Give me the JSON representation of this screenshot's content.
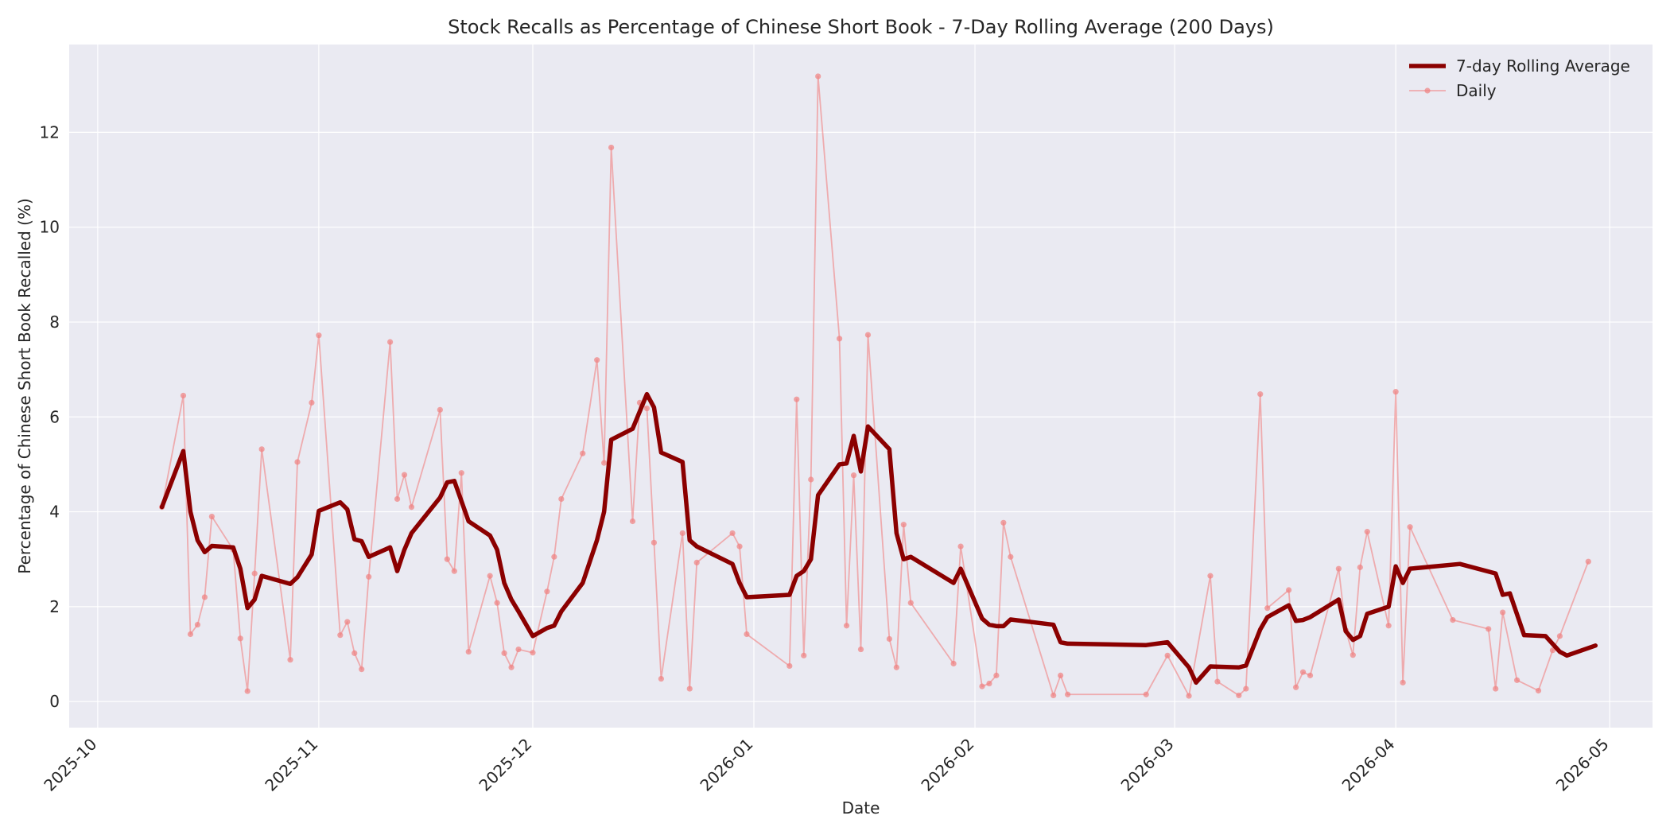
{
  "chart_data": {
    "type": "line",
    "title": "Stock Recalls as Percentage of Chinese Short Book - 7-Day Rolling Average (200 Days)",
    "xlabel": "Date",
    "ylabel": "Percentage of Chinese Short Book Recalled (%)",
    "x_axis_type": "date",
    "xlim": [
      "2025-09-27",
      "2026-05-07"
    ],
    "ylim": [
      -0.55,
      13.85
    ],
    "xticks": [
      "2025-10-01",
      "2025-11-01",
      "2025-12-01",
      "2026-01-01",
      "2026-02-01",
      "2026-03-01",
      "2026-04-01",
      "2026-05-01"
    ],
    "xtick_labels": [
      "2025-10",
      "2025-11",
      "2025-12",
      "2026-01",
      "2026-02",
      "2026-03",
      "2026-04",
      "2026-05"
    ],
    "yticks": [
      0,
      2,
      4,
      6,
      8,
      10,
      12
    ],
    "grid": true,
    "legend_position": "top-right",
    "colors": {
      "background": "#eaeaf2",
      "grid": "#ffffff",
      "rolling": "#8b0000",
      "daily": "#f08080"
    },
    "series": [
      {
        "name": "7-day Rolling Average",
        "style": "thick-line",
        "points": [
          [
            "2025-10-10",
            4.1
          ],
          [
            "2025-10-13",
            5.28
          ],
          [
            "2025-10-14",
            4.0
          ],
          [
            "2025-10-15",
            3.4
          ],
          [
            "2025-10-16",
            3.15
          ],
          [
            "2025-10-17",
            3.28
          ],
          [
            "2025-10-20",
            3.25
          ],
          [
            "2025-10-21",
            2.8
          ],
          [
            "2025-10-22",
            1.97
          ],
          [
            "2025-10-23",
            2.15
          ],
          [
            "2025-10-24",
            2.65
          ],
          [
            "2025-10-28",
            2.48
          ],
          [
            "2025-10-29",
            2.62
          ],
          [
            "2025-10-31",
            3.1
          ],
          [
            "2025-11-01",
            4.02
          ],
          [
            "2025-11-04",
            4.2
          ],
          [
            "2025-11-05",
            4.05
          ],
          [
            "2025-11-06",
            3.42
          ],
          [
            "2025-11-07",
            3.38
          ],
          [
            "2025-11-08",
            3.05
          ],
          [
            "2025-11-11",
            3.25
          ],
          [
            "2025-11-12",
            2.75
          ],
          [
            "2025-11-13",
            3.2
          ],
          [
            "2025-11-14",
            3.55
          ],
          [
            "2025-11-18",
            4.3
          ],
          [
            "2025-11-19",
            4.62
          ],
          [
            "2025-11-20",
            4.65
          ],
          [
            "2025-11-22",
            3.8
          ],
          [
            "2025-11-25",
            3.5
          ],
          [
            "2025-11-26",
            3.2
          ],
          [
            "2025-11-27",
            2.5
          ],
          [
            "2025-11-28",
            2.15
          ],
          [
            "2025-11-29",
            1.9
          ],
          [
            "2025-12-01",
            1.38
          ],
          [
            "2025-12-03",
            1.55
          ],
          [
            "2025-12-04",
            1.6
          ],
          [
            "2025-12-05",
            1.9
          ],
          [
            "2025-12-08",
            2.5
          ],
          [
            "2025-12-10",
            3.4
          ],
          [
            "2025-12-11",
            4.0
          ],
          [
            "2025-12-12",
            5.52
          ],
          [
            "2025-12-15",
            5.75
          ],
          [
            "2025-12-17",
            6.48
          ],
          [
            "2025-12-18",
            6.2
          ],
          [
            "2025-12-19",
            5.25
          ],
          [
            "2025-12-22",
            5.05
          ],
          [
            "2025-12-23",
            3.4
          ],
          [
            "2025-12-24",
            3.27
          ],
          [
            "2025-12-29",
            2.9
          ],
          [
            "2025-12-30",
            2.5
          ],
          [
            "2025-12-31",
            2.2
          ],
          [
            "2026-01-06",
            2.25
          ],
          [
            "2026-01-07",
            2.65
          ],
          [
            "2026-01-08",
            2.75
          ],
          [
            "2026-01-09",
            3.0
          ],
          [
            "2026-01-10",
            4.35
          ],
          [
            "2026-01-13",
            5.0
          ],
          [
            "2026-01-14",
            5.02
          ],
          [
            "2026-01-15",
            5.6
          ],
          [
            "2026-01-16",
            4.85
          ],
          [
            "2026-01-17",
            5.8
          ],
          [
            "2026-01-20",
            5.32
          ],
          [
            "2026-01-21",
            3.55
          ],
          [
            "2026-01-22",
            3.0
          ],
          [
            "2026-01-23",
            3.05
          ],
          [
            "2026-01-29",
            2.5
          ],
          [
            "2026-01-30",
            2.8
          ],
          [
            "2026-02-02",
            1.75
          ],
          [
            "2026-02-03",
            1.62
          ],
          [
            "2026-02-04",
            1.59
          ],
          [
            "2026-02-05",
            1.59
          ],
          [
            "2026-02-06",
            1.73
          ],
          [
            "2026-02-12",
            1.62
          ],
          [
            "2026-02-13",
            1.25
          ],
          [
            "2026-02-14",
            1.22
          ],
          [
            "2026-02-25",
            1.19
          ],
          [
            "2026-02-28",
            1.25
          ],
          [
            "2026-03-03",
            0.72
          ],
          [
            "2026-03-04",
            0.4
          ],
          [
            "2026-03-06",
            0.74
          ],
          [
            "2026-03-10",
            0.72
          ],
          [
            "2026-03-11",
            0.76
          ],
          [
            "2026-03-13",
            1.52
          ],
          [
            "2026-03-14",
            1.78
          ],
          [
            "2026-03-17",
            2.03
          ],
          [
            "2026-03-18",
            1.7
          ],
          [
            "2026-03-19",
            1.72
          ],
          [
            "2026-03-20",
            1.78
          ],
          [
            "2026-03-24",
            2.15
          ],
          [
            "2026-03-25",
            1.48
          ],
          [
            "2026-03-26",
            1.3
          ],
          [
            "2026-03-27",
            1.38
          ],
          [
            "2026-03-28",
            1.85
          ],
          [
            "2026-03-31",
            2.0
          ],
          [
            "2026-04-01",
            2.85
          ],
          [
            "2026-04-02",
            2.5
          ],
          [
            "2026-04-03",
            2.8
          ],
          [
            "2026-04-10",
            2.9
          ],
          [
            "2026-04-15",
            2.7
          ],
          [
            "2026-04-16",
            2.25
          ],
          [
            "2026-04-17",
            2.28
          ],
          [
            "2026-04-19",
            1.4
          ],
          [
            "2026-04-22",
            1.38
          ],
          [
            "2026-04-24",
            1.05
          ],
          [
            "2026-04-25",
            0.97
          ],
          [
            "2026-04-29",
            1.18
          ]
        ]
      },
      {
        "name": "Daily",
        "style": "thin-line-markers",
        "points": [
          [
            "2025-10-10",
            4.1
          ],
          [
            "2025-10-13",
            6.45
          ],
          [
            "2025-10-14",
            1.42
          ],
          [
            "2025-10-15",
            1.62
          ],
          [
            "2025-10-16",
            2.2
          ],
          [
            "2025-10-17",
            3.9
          ],
          [
            "2025-10-20",
            3.2
          ],
          [
            "2025-10-21",
            1.33
          ],
          [
            "2025-10-22",
            0.22
          ],
          [
            "2025-10-23",
            2.7
          ],
          [
            "2025-10-24",
            5.32
          ],
          [
            "2025-10-28",
            0.88
          ],
          [
            "2025-10-29",
            5.05
          ],
          [
            "2025-10-31",
            6.3
          ],
          [
            "2025-11-01",
            7.72
          ],
          [
            "2025-11-04",
            1.4
          ],
          [
            "2025-11-05",
            1.68
          ],
          [
            "2025-11-06",
            1.02
          ],
          [
            "2025-11-07",
            0.68
          ],
          [
            "2025-11-08",
            2.63
          ],
          [
            "2025-11-11",
            7.58
          ],
          [
            "2025-11-12",
            4.27
          ],
          [
            "2025-11-13",
            4.78
          ],
          [
            "2025-11-14",
            4.1
          ],
          [
            "2025-11-18",
            6.15
          ],
          [
            "2025-11-19",
            3.0
          ],
          [
            "2025-11-20",
            2.75
          ],
          [
            "2025-11-21",
            4.82
          ],
          [
            "2025-11-22",
            1.05
          ],
          [
            "2025-11-25",
            2.65
          ],
          [
            "2025-11-26",
            2.08
          ],
          [
            "2025-11-27",
            1.02
          ],
          [
            "2025-11-28",
            0.72
          ],
          [
            "2025-11-29",
            1.1
          ],
          [
            "2025-12-01",
            1.03
          ],
          [
            "2025-12-03",
            2.32
          ],
          [
            "2025-12-04",
            3.05
          ],
          [
            "2025-12-05",
            4.27
          ],
          [
            "2025-12-08",
            5.23
          ],
          [
            "2025-12-10",
            7.2
          ],
          [
            "2025-12-11",
            5.03
          ],
          [
            "2025-12-12",
            11.68
          ],
          [
            "2025-12-15",
            3.8
          ],
          [
            "2025-12-16",
            6.3
          ],
          [
            "2025-12-17",
            6.18
          ],
          [
            "2025-12-18",
            3.35
          ],
          [
            "2025-12-19",
            0.48
          ],
          [
            "2025-12-22",
            3.55
          ],
          [
            "2025-12-23",
            0.27
          ],
          [
            "2025-12-24",
            2.93
          ],
          [
            "2025-12-29",
            3.55
          ],
          [
            "2025-12-30",
            3.27
          ],
          [
            "2025-12-31",
            1.42
          ],
          [
            "2026-01-06",
            0.75
          ],
          [
            "2026-01-07",
            6.37
          ],
          [
            "2026-01-08",
            0.97
          ],
          [
            "2026-01-09",
            4.68
          ],
          [
            "2026-01-10",
            13.18
          ],
          [
            "2026-01-13",
            7.65
          ],
          [
            "2026-01-14",
            1.6
          ],
          [
            "2026-01-15",
            4.77
          ],
          [
            "2026-01-16",
            1.1
          ],
          [
            "2026-01-17",
            7.73
          ],
          [
            "2026-01-20",
            1.32
          ],
          [
            "2026-01-21",
            0.72
          ],
          [
            "2026-01-22",
            3.73
          ],
          [
            "2026-01-23",
            2.08
          ],
          [
            "2026-01-29",
            0.8
          ],
          [
            "2026-01-30",
            3.27
          ],
          [
            "2026-02-02",
            0.32
          ],
          [
            "2026-02-03",
            0.38
          ],
          [
            "2026-02-04",
            0.55
          ],
          [
            "2026-02-05",
            3.77
          ],
          [
            "2026-02-06",
            3.05
          ],
          [
            "2026-02-12",
            0.13
          ],
          [
            "2026-02-13",
            0.55
          ],
          [
            "2026-02-14",
            0.15
          ],
          [
            "2026-02-25",
            0.15
          ],
          [
            "2026-02-28",
            0.97
          ],
          [
            "2026-03-03",
            0.12
          ],
          [
            "2026-03-06",
            2.65
          ],
          [
            "2026-03-07",
            0.42
          ],
          [
            "2026-03-10",
            0.13
          ],
          [
            "2026-03-11",
            0.27
          ],
          [
            "2026-03-13",
            6.48
          ],
          [
            "2026-03-14",
            1.97
          ],
          [
            "2026-03-17",
            2.35
          ],
          [
            "2026-03-18",
            0.3
          ],
          [
            "2026-03-19",
            0.62
          ],
          [
            "2026-03-20",
            0.55
          ],
          [
            "2026-03-24",
            2.8
          ],
          [
            "2026-03-25",
            1.5
          ],
          [
            "2026-03-26",
            0.98
          ],
          [
            "2026-03-27",
            2.83
          ],
          [
            "2026-03-28",
            3.58
          ],
          [
            "2026-03-31",
            1.6
          ],
          [
            "2026-04-01",
            6.53
          ],
          [
            "2026-04-02",
            0.4
          ],
          [
            "2026-04-03",
            3.68
          ],
          [
            "2026-04-09",
            1.72
          ],
          [
            "2026-04-14",
            1.53
          ],
          [
            "2026-04-15",
            0.27
          ],
          [
            "2026-04-16",
            1.88
          ],
          [
            "2026-04-18",
            0.45
          ],
          [
            "2026-04-21",
            0.23
          ],
          [
            "2026-04-23",
            1.08
          ],
          [
            "2026-04-24",
            1.38
          ],
          [
            "2026-04-28",
            2.95
          ]
        ]
      }
    ]
  }
}
